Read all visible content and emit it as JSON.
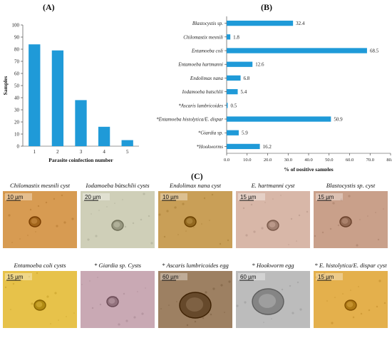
{
  "panels": {
    "a": "(A)",
    "b": "(B)",
    "c": "(C)"
  },
  "chart_data": [
    {
      "type": "bar",
      "title": "",
      "xlabel": "Parasite coinfection number",
      "ylabel": "Samples",
      "categories": [
        "1",
        "2",
        "3",
        "4",
        "5"
      ],
      "values": [
        84,
        79,
        38,
        16,
        5
      ],
      "ylim": [
        0,
        100
      ],
      "yticks": [
        "0",
        "10",
        "20",
        "30",
        "40",
        "50",
        "60",
        "70",
        "80",
        "90",
        "100"
      ],
      "color": "#1f9ad8",
      "grid": false
    },
    {
      "type": "bar",
      "orientation": "horizontal",
      "title": "",
      "xlabel": "% of positive samples",
      "ylabel": "",
      "categories": [
        "Blastocystis sp.",
        "Chilomastix mesnili",
        "Entamoeba coli",
        "Entamoeba hartmanni",
        "Endolimax nana",
        "Iodamoeba butschlii",
        "*Ascaris lumbricoides",
        "*Entamoeba histolytica/E. dispar",
        "*Giardia sp.",
        "*Hookworms"
      ],
      "values": [
        32.4,
        1.8,
        68.5,
        12.6,
        6.8,
        5.4,
        0.5,
        50.9,
        5.9,
        16.2
      ],
      "value_labels": [
        "32.4",
        "1.8",
        "68.5",
        "12.6",
        "6.8",
        "5.4",
        "0.5",
        "50.9",
        "5.9",
        "16.2"
      ],
      "xlim": [
        0,
        80
      ],
      "xticks": [
        "0.0",
        "10.0",
        "20.0",
        "30.0",
        "40.0",
        "50.0",
        "60.0",
        "70.0",
        "80.0"
      ],
      "color": "#1f9ad8",
      "grid": false
    }
  ],
  "micrographs": [
    {
      "caption": "Chilomastix mesnili cyst",
      "scale": "10 µm",
      "bg": "#d79b52",
      "row": 0,
      "col": 0
    },
    {
      "caption": "Iodamoeba bütschlii cysts",
      "scale": "20 µm",
      "bg": "#cfcfb8",
      "row": 0,
      "col": 1
    },
    {
      "caption": "Endolimax nana cyst",
      "scale": "10 µm",
      "bg": "#c99f57",
      "row": 0,
      "col": 2
    },
    {
      "caption": "E. hartmanni cyst",
      "scale": "15 µm",
      "bg": "#d8b7a8",
      "row": 0,
      "col": 3
    },
    {
      "caption": "Blastocystis sp. cyst",
      "scale": "15 µm",
      "bg": "#c9a08a",
      "row": 0,
      "col": 4
    },
    {
      "caption": "Entamoeba coli cysts",
      "scale": "15 µm",
      "bg": "#e7c24a",
      "row": 1,
      "col": 0
    },
    {
      "caption": "* Giardia sp. Cysts",
      "scale": "",
      "bg": "#c9a9b4",
      "row": 1,
      "col": 1
    },
    {
      "caption": "* Ascaris lumbricoides egg",
      "scale": "60 µm",
      "bg": "#9d8062",
      "row": 1,
      "col": 2
    },
    {
      "caption": "* Hookworm egg",
      "scale": "60 µm",
      "bg": "#bcbcbc",
      "row": 1,
      "col": 3
    },
    {
      "caption": "* E. histolytica/E. dispar cyst",
      "scale": "15 µm",
      "bg": "#e4b04c",
      "row": 1,
      "col": 4
    }
  ]
}
